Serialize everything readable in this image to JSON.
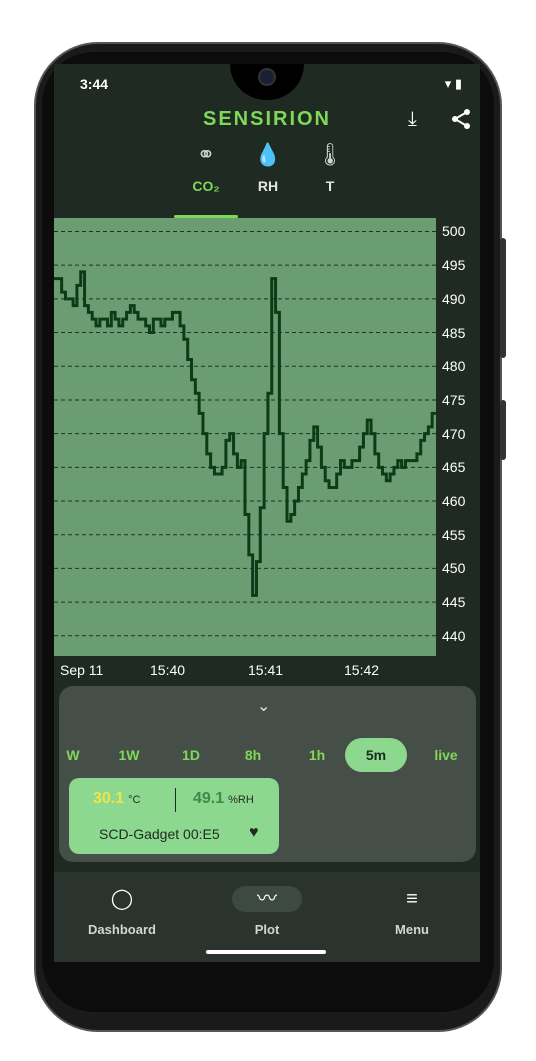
{
  "status": {
    "time": "3:44"
  },
  "header": {
    "logo": "SENSIRION",
    "download_icon": "download-icon",
    "share_icon": "share-icon"
  },
  "tabs": [
    {
      "label": "CO₂",
      "icon": "co2-molecule-icon",
      "active": true
    },
    {
      "label": "RH",
      "icon": "humidity-drop-icon",
      "active": false
    },
    {
      "label": "T",
      "icon": "thermometer-icon",
      "active": false
    }
  ],
  "chart_data": {
    "type": "line",
    "x_labels": [
      "Sep 11",
      "15:40",
      "15:41",
      "15:42"
    ],
    "y_ticks": [
      500,
      495,
      490,
      485,
      480,
      475,
      470,
      465,
      460,
      455,
      450,
      445,
      440
    ],
    "ylim": [
      437,
      502
    ],
    "grid": true,
    "series": [
      {
        "x": [
          0,
          0.01,
          0.02,
          0.03,
          0.05,
          0.06,
          0.07,
          0.08,
          0.09,
          0.1,
          0.11,
          0.12,
          0.13,
          0.14,
          0.15,
          0.16,
          0.17,
          0.18,
          0.19,
          0.2,
          0.21,
          0.22,
          0.23,
          0.24,
          0.25,
          0.26,
          0.27,
          0.28,
          0.29,
          0.3,
          0.31,
          0.32,
          0.33,
          0.34,
          0.35,
          0.36,
          0.37,
          0.38,
          0.39,
          0.4,
          0.41,
          0.42,
          0.43,
          0.44,
          0.45,
          0.46,
          0.47,
          0.48,
          0.49,
          0.5,
          0.51,
          0.52,
          0.53,
          0.54,
          0.55,
          0.56,
          0.57,
          0.58,
          0.59,
          0.6,
          0.61,
          0.62,
          0.63,
          0.64,
          0.65,
          0.66,
          0.67,
          0.68,
          0.69,
          0.7,
          0.71,
          0.72,
          0.73,
          0.74,
          0.75,
          0.76,
          0.77,
          0.78,
          0.79,
          0.8,
          0.81,
          0.82,
          0.83,
          0.84,
          0.85,
          0.86,
          0.87,
          0.88,
          0.89,
          0.9,
          0.91,
          0.92,
          0.93,
          0.94,
          0.95,
          0.96,
          0.97,
          0.98,
          0.99,
          1.0
        ],
        "y": [
          493,
          493,
          491,
          490,
          489,
          492,
          494,
          489,
          488,
          487,
          486,
          487,
          487,
          486,
          488,
          487,
          486,
          487,
          488,
          489,
          488,
          487,
          487,
          486,
          485,
          487,
          487,
          486,
          487,
          487,
          488,
          488,
          486,
          484,
          481,
          478,
          476,
          473,
          470,
          467,
          465,
          464,
          464,
          465,
          469,
          470,
          467,
          465,
          466,
          458,
          452,
          446,
          451,
          459,
          470,
          476,
          493,
          488,
          470,
          462,
          457,
          458,
          460,
          462,
          464,
          466,
          469,
          471,
          468,
          465,
          463,
          462,
          462,
          464,
          466,
          465,
          465,
          466,
          466,
          468,
          470,
          472,
          470,
          467,
          465,
          464,
          463,
          464,
          465,
          466,
          465,
          466,
          466,
          466,
          467,
          469,
          470,
          471,
          473,
          473
        ]
      }
    ]
  },
  "panel": {
    "chevron_icon": "chevron-down-icon",
    "ranges": [
      "W",
      "1W",
      "1D",
      "8h",
      "1h",
      "5m",
      "live"
    ],
    "selected_range": "5m",
    "device": {
      "temp": "30.1",
      "temp_unit": "°C",
      "humidity": "49.1",
      "humidity_unit": "%RH",
      "name": "SCD-Gadget 00:E5",
      "fav_icon": "heart-icon"
    }
  },
  "nav": [
    {
      "label": "Dashboard",
      "icon": "circle-icon",
      "active": false
    },
    {
      "label": "Plot",
      "icon": "trend-icon",
      "active": true
    },
    {
      "label": "Menu",
      "icon": "hamburger-icon",
      "active": false
    }
  ]
}
